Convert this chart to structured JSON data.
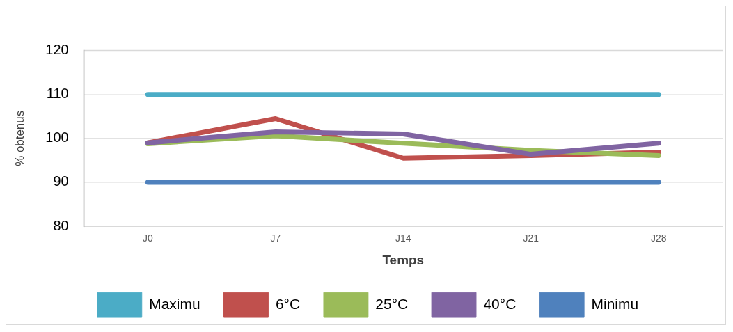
{
  "chart_data": {
    "type": "line",
    "xlabel": "Temps",
    "ylabel": "% obtenus",
    "categories": [
      "J0",
      "J7",
      "J14",
      "J21",
      "J28"
    ],
    "series": [
      {
        "name": "Maximu",
        "color": "#4bacc6",
        "values": [
          110,
          110,
          110,
          110,
          110
        ]
      },
      {
        "name": "6°C",
        "color": "#c0504d",
        "values": [
          99,
          104.5,
          95.5,
          96.1,
          96.9
        ]
      },
      {
        "name": "25°C",
        "color": "#9bbb59",
        "values": [
          98.8,
          100.6,
          98.9,
          97.3,
          96.1
        ]
      },
      {
        "name": "40°C",
        "color": "#8064a2",
        "values": [
          99,
          101.5,
          101,
          96.4,
          98.9
        ]
      },
      {
        "name": "Minimu",
        "color": "#4f81bd",
        "values": [
          90,
          90,
          90,
          90,
          90
        ]
      }
    ],
    "ylim": [
      80,
      120
    ],
    "yticks": [
      80,
      90,
      100,
      110,
      120
    ],
    "grid": "y",
    "legend": "bottom",
    "marker": "none"
  }
}
